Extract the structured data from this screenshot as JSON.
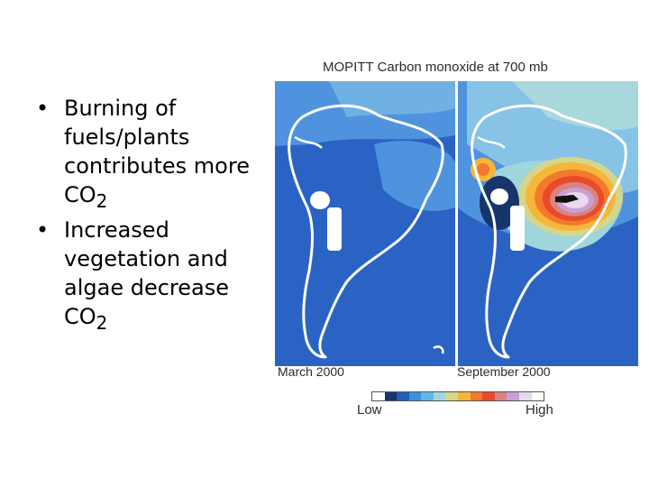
{
  "bullets": [
    {
      "text": "Burning of fuels/plants contributes more CO",
      "sub": "2"
    },
    {
      "text": "Increased vegetation and algae decrease CO",
      "sub": "2"
    }
  ],
  "figure": {
    "title": "MOPITT Carbon monoxide at 700 mb",
    "left_label": "March 2000",
    "right_label": "September 2000",
    "legend_low": "Low",
    "legend_high": "High",
    "legend_colors": [
      "#ffffff",
      "#17346d",
      "#1f5fb4",
      "#3b8fdc",
      "#62b6e4",
      "#9fd6dc",
      "#d6d68a",
      "#f5b63a",
      "#f3792c",
      "#e84a2a",
      "#d9847e",
      "#c9a0d6",
      "#e9d8f0",
      "#ffffff"
    ],
    "colors": {
      "ocean": "#2b63c4",
      "mid": "#4f93df",
      "light": "#86c3e6",
      "pale": "#a8d8dc",
      "coast": "#ffffff"
    }
  }
}
